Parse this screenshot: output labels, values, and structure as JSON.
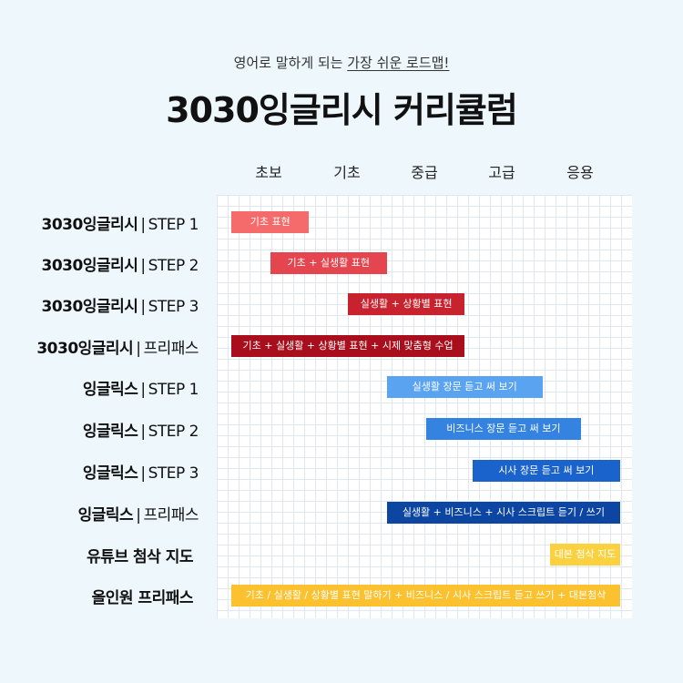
{
  "header": {
    "subtitle_prefix": "영어로 말하게 되는 ",
    "subtitle_highlight": "가장 쉬운 로드맵!",
    "title": "3030잉글리시 커리큘럼"
  },
  "levels": [
    "초보",
    "기초",
    "중급",
    "고급",
    "응용"
  ],
  "rows": [
    {
      "brand": "3030잉글리시",
      "sep": "|",
      "step": "STEP 1",
      "bar_label": "기초 표현",
      "color": "#f56b6b",
      "start_level": 0.0,
      "end_level": 1.0
    },
    {
      "brand": "3030잉글리시",
      "sep": "|",
      "step": "STEP 2",
      "bar_label": "기초 + 실생활 표현",
      "color": "#e5454e",
      "start_level": 0.5,
      "end_level": 2.0
    },
    {
      "brand": "3030잉글리시",
      "sep": "|",
      "step": "STEP 3",
      "bar_label": "실생활 + 상황별 표현",
      "color": "#c8222e",
      "start_level": 1.5,
      "end_level": 3.0
    },
    {
      "brand": "3030잉글리시",
      "sep": "|",
      "step": "프리패스",
      "bar_label": "기초 + 실생활 + 상황별 표현 + 시제 맞춤형 수업",
      "color": "#a80e1b",
      "start_level": 0.0,
      "end_level": 3.0
    },
    {
      "brand": "잉글릭스",
      "sep": "|",
      "step": "STEP 1",
      "bar_label": "실생활 장문 듣고 써 보기",
      "color": "#5aa3f0",
      "start_level": 2.0,
      "end_level": 4.0
    },
    {
      "brand": "잉글릭스",
      "sep": "|",
      "step": "STEP 2",
      "bar_label": "비즈니스 장문 듣고 써 보기",
      "color": "#3583e0",
      "start_level": 2.5,
      "end_level": 4.5
    },
    {
      "brand": "잉글릭스",
      "sep": "|",
      "step": "STEP 3",
      "bar_label": "시사 장문 듣고 써 보기",
      "color": "#1a63cc",
      "start_level": 3.1,
      "end_level": 5.0
    },
    {
      "brand": "잉글릭스",
      "sep": "|",
      "step": "프리패스",
      "bar_label": "실생활 + 비즈니스 + 시사 스크립트 듣기 / 쓰기",
      "color": "#0c46a2",
      "start_level": 2.0,
      "end_level": 5.0
    },
    {
      "brand": "유튜브 첨삭 지도",
      "sep": "",
      "step": "",
      "bar_label": "대본 첨삭 지도",
      "color": "#fbd140",
      "start_level": 4.1,
      "end_level": 5.0
    },
    {
      "brand": "올인원 프리패스",
      "sep": "",
      "step": "",
      "bar_label": "기초 / 실생활 / 상황별 표현 말하기 + 비즈니스 / 시사 스크립트 듣고 쓰기 + 대본첨삭",
      "color": "#fbc12e",
      "start_level": 0.0,
      "end_level": 5.0
    }
  ]
}
